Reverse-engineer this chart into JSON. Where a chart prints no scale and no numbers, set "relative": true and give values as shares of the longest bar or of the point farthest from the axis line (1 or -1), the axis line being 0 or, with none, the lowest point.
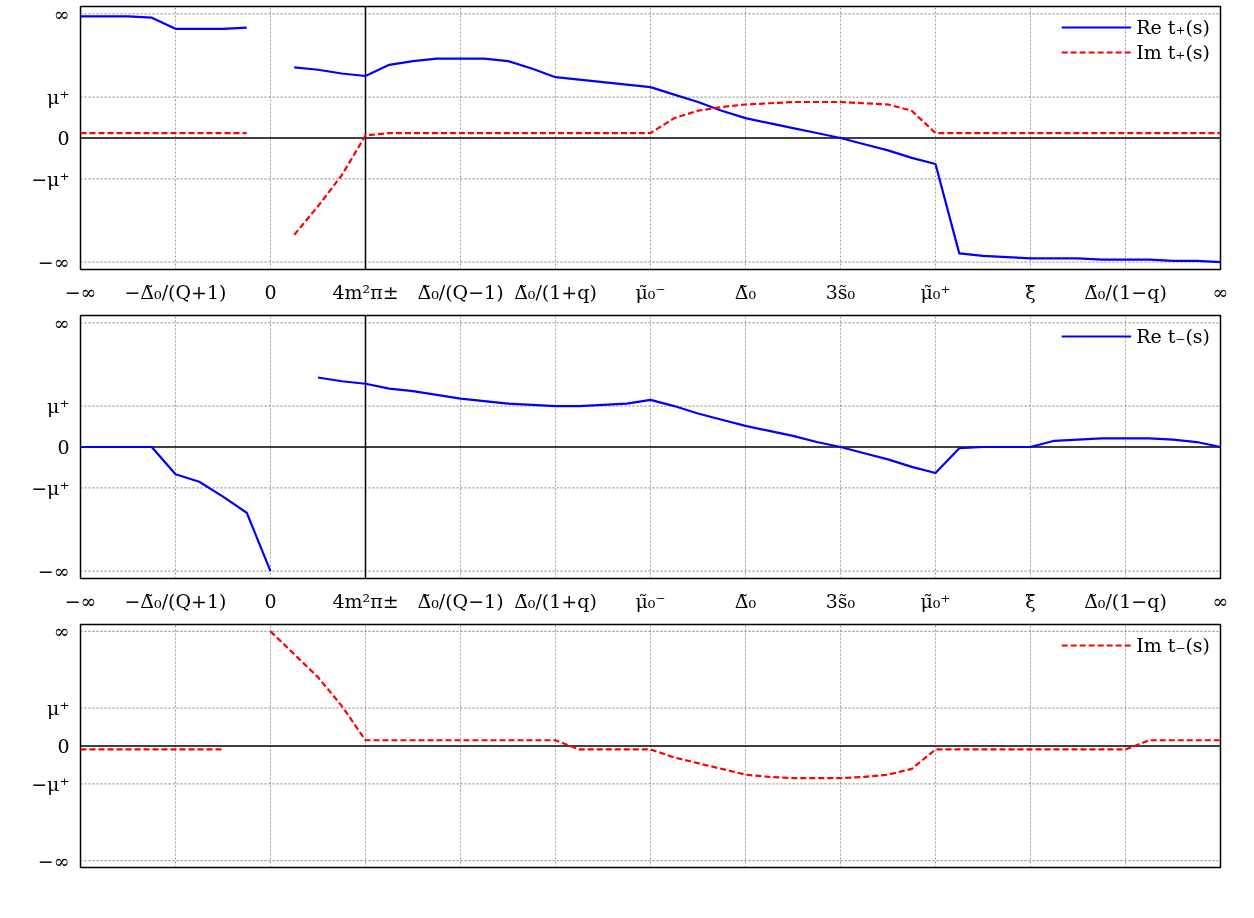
{
  "chart_data": [
    {
      "type": "line",
      "relative": true,
      "categories": [
        "−∞",
        null,
        null,
        null,
        "−Δ̃₀/(Q+1)",
        null,
        null,
        null,
        "0",
        null,
        null,
        null,
        "4m²π±",
        null,
        null,
        null,
        "Δ̃₀/(Q−1)",
        null,
        null,
        null,
        "Δ̃₀/(1+q)",
        null,
        null,
        null,
        "μ̃₀⁻",
        null,
        null,
        null,
        "Δ̃₀",
        null,
        null,
        null,
        "3s̃₀",
        null,
        null,
        null,
        "μ̃₀⁺",
        null,
        null,
        null,
        "ξ̃",
        null,
        null,
        null,
        "Δ̃₀/(1−q)",
        null,
        null,
        null,
        "∞"
      ],
      "grid": "x",
      "legend": "top right",
      "ref_lines": [
        {
          "axis": "y",
          "value": -1,
          "label": "−∞",
          "color": "#999999",
          "line_style": "dotted"
        },
        {
          "axis": "y",
          "value": -0.33,
          "label": "−μ⁺",
          "color": "#999999",
          "line_style": "dotted"
        },
        {
          "axis": "y",
          "value": 0,
          "label": "0",
          "color": "#000000",
          "line_style": "solid"
        },
        {
          "axis": "y",
          "value": 0.33,
          "label": "μ⁺",
          "color": "#999999",
          "line_style": "dotted"
        },
        {
          "axis": "y",
          "value": 1,
          "label": "∞",
          "color": "#999999",
          "line_style": "dotted"
        },
        {
          "axis": "x",
          "value": "4m²π±",
          "color": "#000000",
          "line_style": "solid"
        }
      ],
      "series": [
        {
          "name": "Re t₊(s)",
          "color": "#0000ff",
          "line_style": "solid",
          "values": [
            0.98,
            0.98,
            0.98,
            0.97,
            0.88,
            0.88,
            0.88,
            0.89,
            null,
            0.57,
            0.55,
            0.52,
            0.5,
            0.59,
            0.62,
            0.64,
            0.64,
            0.64,
            0.62,
            0.56,
            0.49,
            0.47,
            0.45,
            0.43,
            0.41,
            0.35,
            0.29,
            0.22,
            0.16,
            0.12,
            0.08,
            0.04,
            0,
            -0.05,
            -0.1,
            -0.16,
            -0.21,
            -0.93,
            -0.95,
            -0.96,
            -0.97,
            -0.97,
            -0.97,
            -0.98,
            -0.98,
            -0.98,
            -0.99,
            -0.99,
            -1
          ]
        },
        {
          "name": "Im t₊(s)",
          "color": "#ff0000",
          "line_style": "dashed",
          "values": [
            0.04,
            0.04,
            0.04,
            0.04,
            0.04,
            0.04,
            0.04,
            0.04,
            null,
            -0.78,
            -0.55,
            -0.3,
            0.02,
            0.04,
            0.04,
            0.04,
            0.04,
            0.04,
            0.04,
            0.04,
            0.04,
            0.04,
            0.04,
            0.04,
            0.04,
            0.16,
            0.22,
            0.25,
            0.27,
            0.28,
            0.29,
            0.29,
            0.29,
            0.28,
            0.27,
            0.22,
            0.04,
            0.04,
            0.04,
            0.04,
            0.04,
            0.04,
            0.04,
            0.04,
            0.04,
            0.04,
            0.04,
            0.04,
            0.04
          ]
        }
      ]
    },
    {
      "type": "line",
      "relative": true,
      "categories": [
        "−∞",
        null,
        null,
        null,
        "−Δ̃₀/(Q+1)",
        null,
        null,
        null,
        "0",
        null,
        null,
        null,
        "4m²π±",
        null,
        null,
        null,
        "Δ̃₀/(Q−1)",
        null,
        null,
        null,
        "Δ̃₀/(1+q)",
        null,
        null,
        null,
        "μ̃₀⁻",
        null,
        null,
        null,
        "Δ̃₀",
        null,
        null,
        null,
        "3s̃₀",
        null,
        null,
        null,
        "μ̃₀⁺",
        null,
        null,
        null,
        "ξ̃",
        null,
        null,
        null,
        "Δ̃₀/(1−q)",
        null,
        null,
        null,
        "∞"
      ],
      "grid": "x",
      "legend": "top right",
      "ref_lines": [
        {
          "axis": "y",
          "value": -1,
          "label": "−∞",
          "color": "#999999",
          "line_style": "dotted"
        },
        {
          "axis": "y",
          "value": -0.33,
          "label": "−μ⁺",
          "color": "#999999",
          "line_style": "dotted"
        },
        {
          "axis": "y",
          "value": 0,
          "label": "0",
          "color": "#000000",
          "line_style": "solid"
        },
        {
          "axis": "y",
          "value": 0.33,
          "label": "μ⁺",
          "color": "#999999",
          "line_style": "dotted"
        },
        {
          "axis": "y",
          "value": 1,
          "label": "∞",
          "color": "#999999",
          "line_style": "dotted"
        },
        {
          "axis": "x",
          "value": "4m²π±",
          "color": "#000000",
          "line_style": "solid"
        }
      ],
      "series": [
        {
          "name": "Re t₋(s)",
          "color": "#0000ff",
          "line_style": "solid",
          "values": [
            0,
            0,
            0,
            0,
            -0.22,
            -0.28,
            -0.4,
            -0.53,
            -1,
            null,
            0.56,
            0.53,
            0.51,
            0.47,
            0.45,
            0.42,
            0.39,
            0.37,
            0.35,
            0.34,
            0.33,
            0.33,
            0.34,
            0.35,
            0.38,
            0.33,
            0.27,
            0.22,
            0.17,
            0.13,
            0.09,
            0.04,
            0,
            -0.05,
            -0.1,
            -0.16,
            -0.21,
            -0.01,
            0,
            0,
            0,
            0.05,
            0.06,
            0.07,
            0.07,
            0.07,
            0.06,
            0.04,
            0
          ]
        }
      ]
    },
    {
      "type": "line",
      "relative": true,
      "categories": [
        null,
        null,
        null,
        null,
        null,
        null,
        null,
        null,
        null,
        null,
        null,
        null,
        null,
        null,
        null,
        null,
        null,
        null,
        null,
        null,
        null,
        null,
        null,
        null,
        null,
        null,
        null,
        null,
        null,
        null,
        null,
        null,
        null,
        null,
        null,
        null,
        null,
        null,
        null,
        null,
        null,
        null,
        null,
        null,
        null,
        null,
        null,
        null,
        null
      ],
      "grid": "x",
      "legend": "top right",
      "ref_lines": [
        {
          "axis": "y",
          "value": -1,
          "label": "−∞",
          "color": "#999999",
          "line_style": "dotted"
        },
        {
          "axis": "y",
          "value": -0.33,
          "label": "−μ⁺",
          "color": "#999999",
          "line_style": "dotted"
        },
        {
          "axis": "y",
          "value": 0,
          "label": "0",
          "color": "#000000",
          "line_style": "solid"
        },
        {
          "axis": "y",
          "value": 0.33,
          "label": "μ⁺",
          "color": "#999999",
          "line_style": "dotted"
        },
        {
          "axis": "y",
          "value": 1,
          "label": "∞",
          "color": "#999999",
          "line_style": "dotted"
        }
      ],
      "series": [
        {
          "name": "Im t₋(s)",
          "color": "#ff0000",
          "line_style": "dashed",
          "values": [
            -0.03,
            -0.03,
            -0.03,
            -0.03,
            -0.03,
            -0.03,
            -0.03,
            null,
            1,
            0.8,
            0.6,
            0.35,
            0.05,
            0.05,
            0.05,
            0.05,
            0.05,
            0.05,
            0.05,
            0.05,
            0.05,
            -0.03,
            -0.03,
            -0.03,
            -0.03,
            -0.1,
            -0.15,
            -0.2,
            -0.25,
            -0.27,
            -0.28,
            -0.28,
            -0.28,
            -0.27,
            -0.25,
            -0.2,
            -0.03,
            -0.03,
            -0.03,
            -0.03,
            -0.03,
            -0.03,
            -0.03,
            -0.03,
            -0.03,
            0.05,
            0.05,
            0.05,
            0.05
          ]
        }
      ]
    }
  ]
}
